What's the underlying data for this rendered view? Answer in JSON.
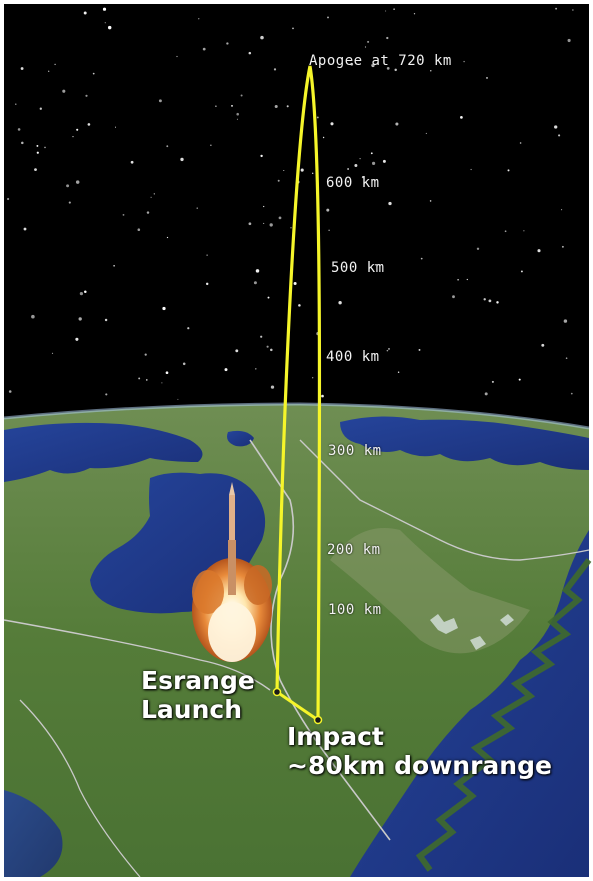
{
  "labels": {
    "apogee": "Apogee at 720 km",
    "alt_600": "600 km",
    "alt_500": "500 km",
    "alt_400": "400 km",
    "alt_300": "300 km",
    "alt_200": "200 km",
    "alt_100": "100 km",
    "launch_line1": "Esrange",
    "launch_line2": "Launch",
    "impact_line1": "Impact",
    "impact_line2": "~80km downrange"
  },
  "colors": {
    "space": "#000000",
    "trajectory": "#f5f52a",
    "sea": "#1e3a8c",
    "land": "#5b7f3e",
    "border": "#c9c9c9"
  },
  "icons": {
    "rocket": "rocket-icon",
    "explosion": "launch-plume"
  }
}
